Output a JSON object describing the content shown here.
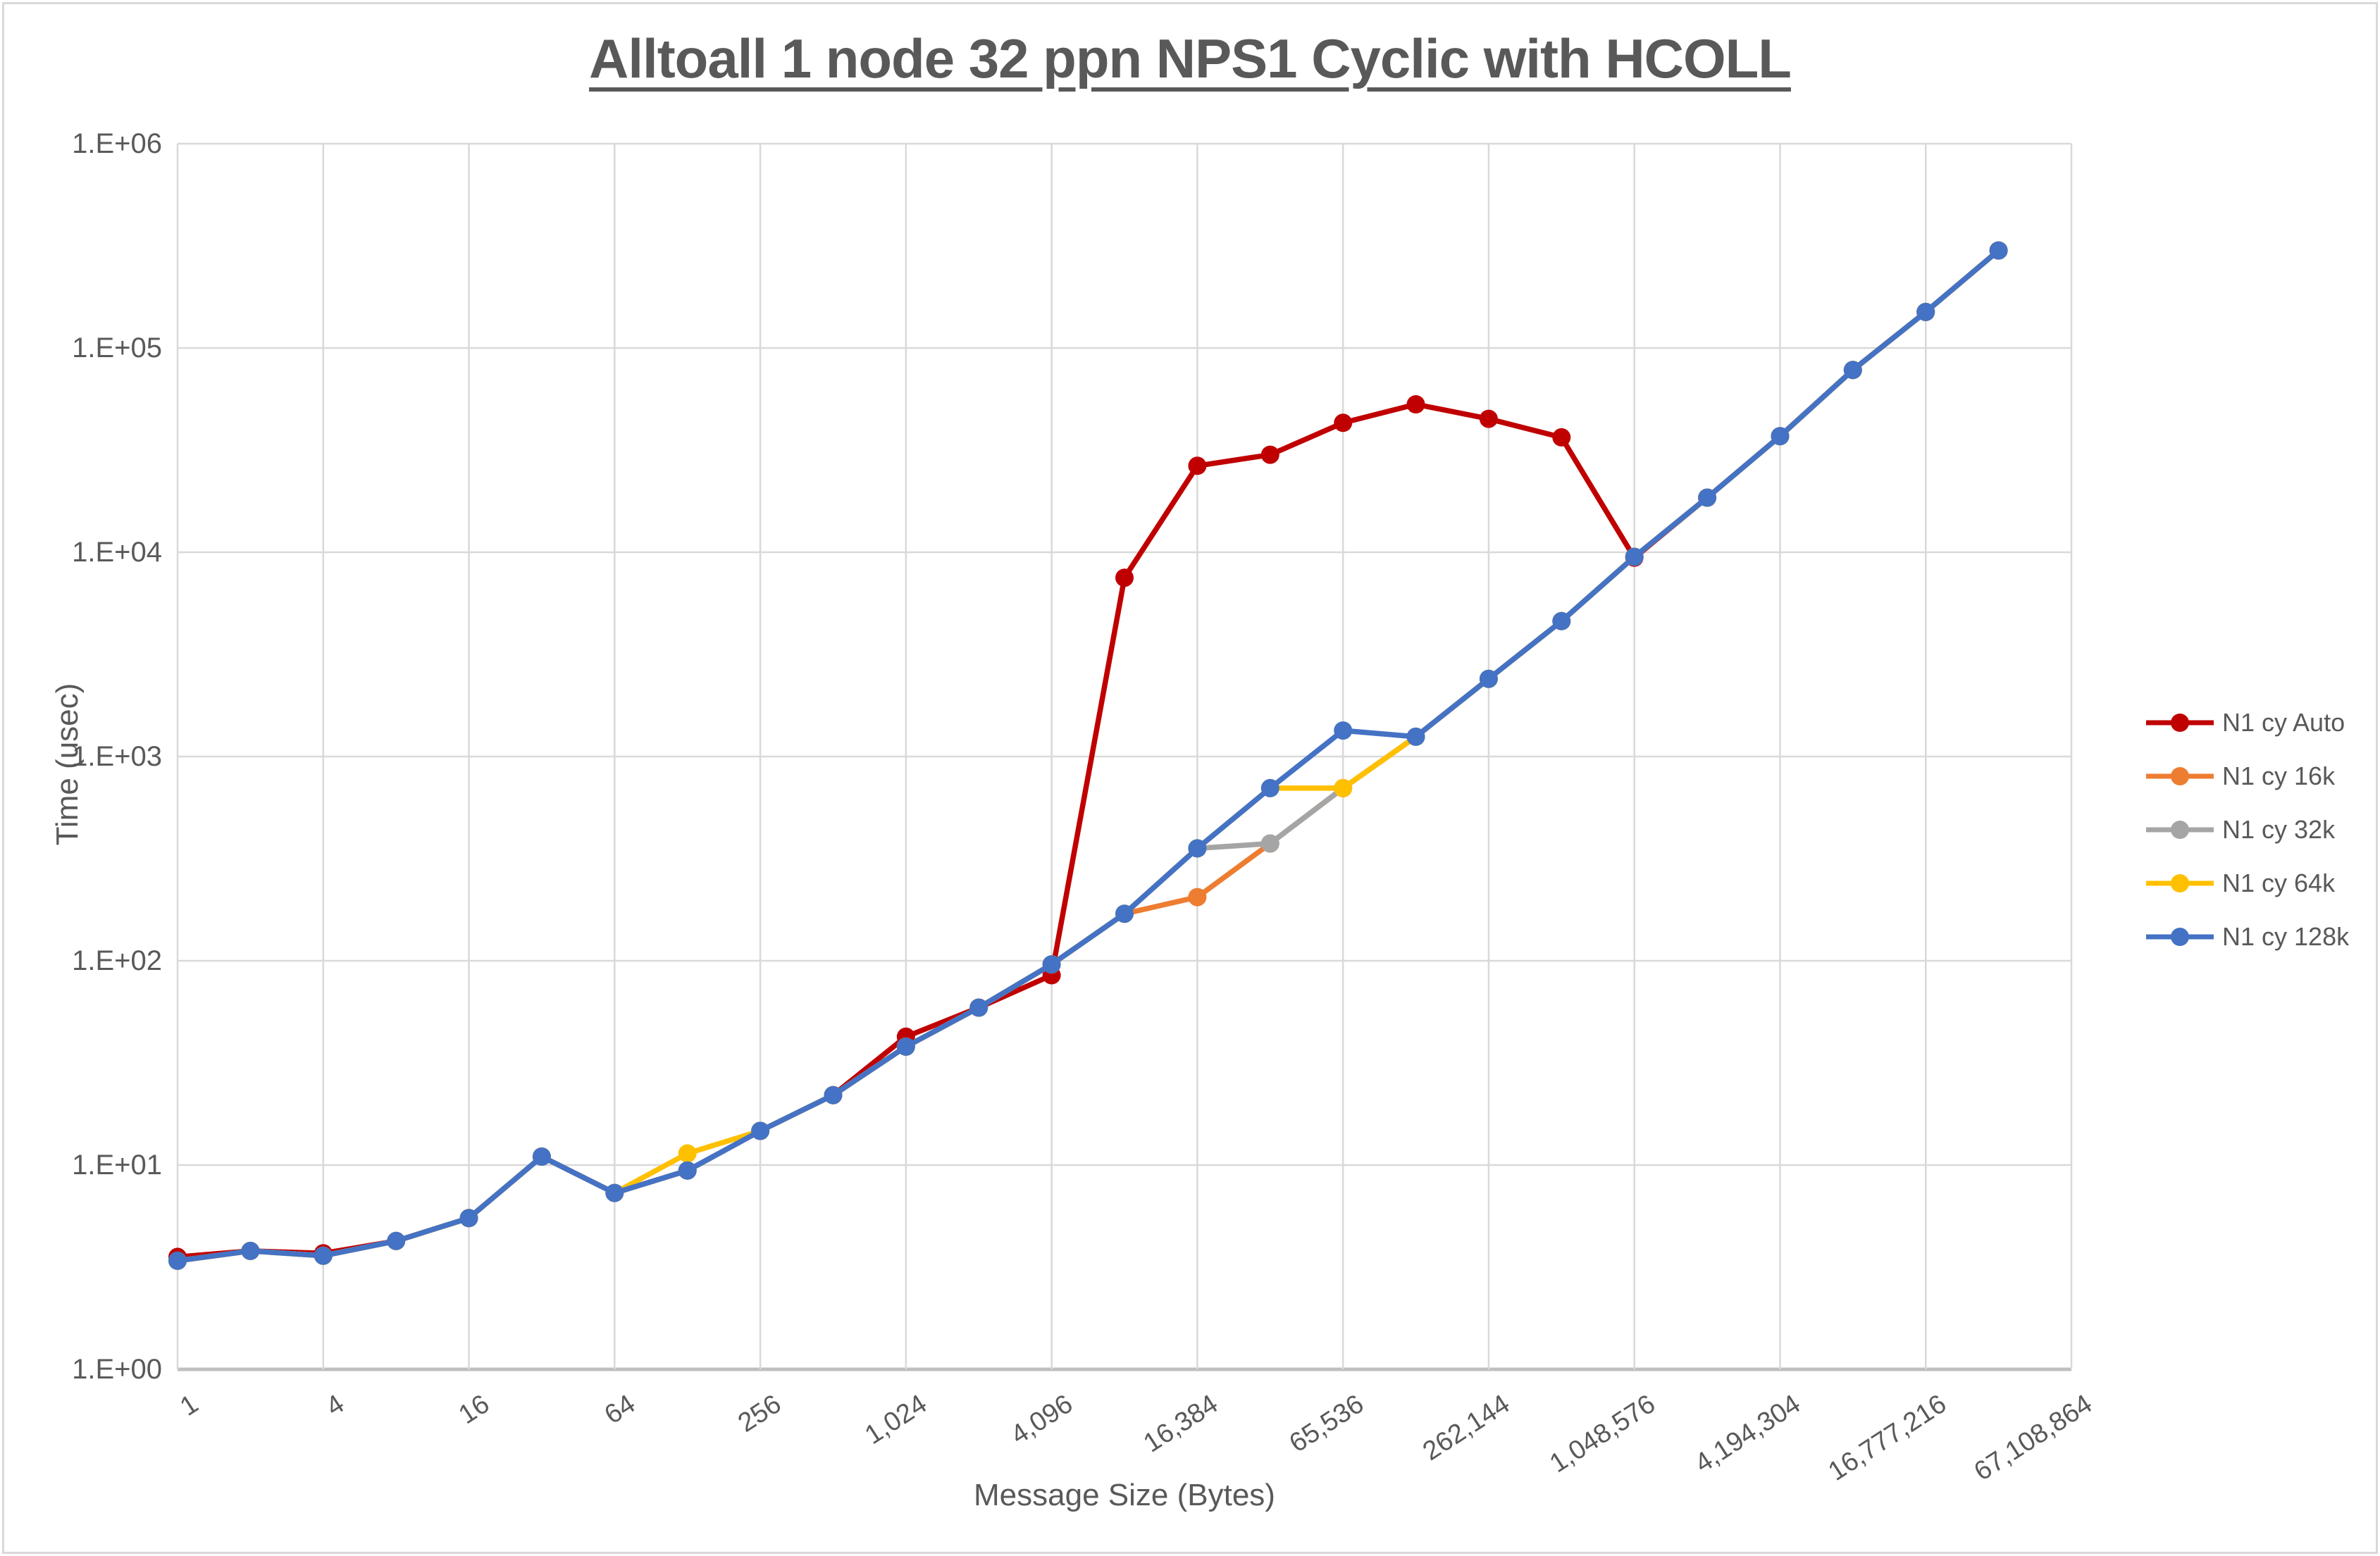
{
  "window": {
    "background": "#FFFFFF",
    "frame_color": "#D9D9D9"
  },
  "chart_data": {
    "type": "line",
    "title": "Alltoall 1 node 32 ppn NPS1 Cyclic with HCOLL",
    "xlabel": "Message Size (Bytes)",
    "ylabel": "Time (usec)",
    "x_scale": "log2-categories",
    "y_scale": "log10",
    "ylim": [
      1,
      1000000
    ],
    "x_axis_end": 67108864,
    "grid": true,
    "legend_position": "right",
    "text_color": "#595959",
    "grid_color": "#D9D9D9",
    "axis_line_color": "#BFBFBF",
    "x": [
      1,
      2,
      4,
      8,
      16,
      32,
      64,
      128,
      256,
      512,
      1024,
      2048,
      4096,
      8192,
      16384,
      32768,
      65536,
      131072,
      262144,
      524288,
      1048576,
      2097152,
      4194304,
      8388608,
      16777216,
      33554432
    ],
    "x_tick_labels": [
      "1",
      "4",
      "16",
      "64",
      "256",
      "1,024",
      "4,096",
      "16,384",
      "65,536",
      "262,144",
      "1,048,576",
      "4,194,304",
      "16,777,216",
      "67,108,864"
    ],
    "y_tick_labels": [
      "1.E+00",
      "1.E+01",
      "1.E+02",
      "1.E+03",
      "1.E+04",
      "1.E+05",
      "1.E+06"
    ],
    "series": [
      {
        "name": "N1 cy Auto",
        "color": "#C00000",
        "values": [
          3.55,
          3.8,
          3.7,
          4.25,
          5.5,
          11.0,
          7.3,
          9.4,
          14.7,
          22.0,
          42.5,
          59.0,
          85.0,
          7500,
          26500,
          30000,
          43000,
          53000,
          45000,
          36500,
          9400,
          18500,
          37000,
          78000,
          150000,
          300000
        ]
      },
      {
        "name": "N1 cy 16k",
        "color": "#ED7D31",
        "values": [
          3.4,
          3.8,
          3.6,
          4.25,
          5.5,
          11.0,
          7.3,
          9.4,
          14.7,
          22.0,
          38.0,
          59.0,
          96.0,
          170,
          205,
          375,
          700,
          1250,
          2400,
          4600,
          9500,
          18500,
          37000,
          78000,
          150000,
          300000
        ]
      },
      {
        "name": "N1 cy 32k",
        "color": "#A5A5A5",
        "values": [
          3.4,
          3.8,
          3.6,
          4.25,
          5.5,
          11.0,
          7.3,
          9.4,
          14.7,
          22.0,
          38.0,
          59.0,
          96.0,
          170,
          355,
          375,
          700,
          1250,
          2400,
          4600,
          9500,
          18500,
          37000,
          78000,
          150000,
          300000
        ]
      },
      {
        "name": "N1 cy 64k",
        "color": "#FFC000",
        "values": [
          3.4,
          3.8,
          3.6,
          4.25,
          5.5,
          11.0,
          7.3,
          11.4,
          14.7,
          22.0,
          38.0,
          59.0,
          96.0,
          170,
          355,
          700,
          700,
          1250,
          2400,
          4600,
          9500,
          18500,
          37000,
          78000,
          150000,
          300000
        ]
      },
      {
        "name": "N1 cy 128k",
        "color": "#4472C4",
        "values": [
          3.4,
          3.8,
          3.6,
          4.25,
          5.5,
          11.0,
          7.3,
          9.4,
          14.7,
          22.0,
          38.0,
          59.0,
          96.0,
          170,
          355,
          700,
          1340,
          1250,
          2400,
          4600,
          9500,
          18500,
          37000,
          78000,
          150000,
          300000
        ]
      }
    ]
  }
}
